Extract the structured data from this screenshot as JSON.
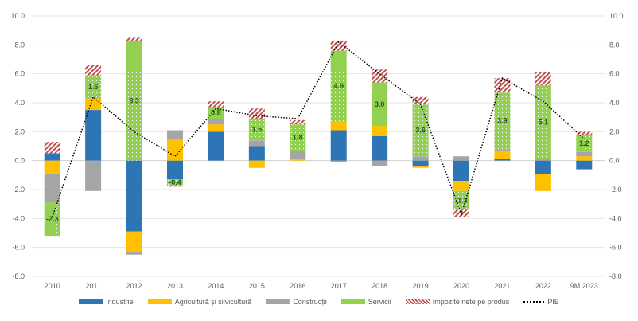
{
  "chart_data": {
    "type": "bar",
    "stacked": true,
    "title": "",
    "xlabel": "",
    "ylabel": "",
    "ylim": [
      -8.0,
      10.0
    ],
    "yticks": [
      "10.0",
      "8.0",
      "6.0",
      "4.0",
      "2.0",
      "0.0",
      "-2.0",
      "-4.0",
      "-6.0",
      "-8.0"
    ],
    "ytick_values": [
      10,
      8,
      6,
      4,
      2,
      0,
      -2,
      -4,
      -6,
      -8
    ],
    "secondary_yaxis": true,
    "grid": true,
    "legend_position": "bottom",
    "categories": [
      "2010",
      "2011",
      "2012",
      "2013",
      "2014",
      "2015",
      "2016",
      "2017",
      "2018",
      "2019",
      "2020",
      "2021",
      "2022",
      "9M 2023"
    ],
    "series": [
      {
        "name": "Industrie",
        "type": "bar",
        "color": "#2e75b6",
        "values": [
          0.5,
          3.5,
          -4.9,
          -1.3,
          2.0,
          1.0,
          0.0,
          2.1,
          1.7,
          -0.4,
          -1.4,
          0.1,
          -0.9,
          -0.6
        ]
      },
      {
        "name": "Agricultură și silvicultură",
        "type": "bar",
        "color": "#ffc000",
        "values": [
          -0.9,
          0.8,
          -1.4,
          1.5,
          0.5,
          -0.5,
          0.1,
          0.6,
          0.7,
          -0.1,
          -0.7,
          0.6,
          -1.2,
          0.3
        ]
      },
      {
        "name": "Construcții",
        "type": "bar",
        "color": "#a5a5a5",
        "values": [
          -2.0,
          -2.1,
          -0.2,
          0.6,
          0.4,
          0.4,
          0.6,
          -0.1,
          -0.4,
          0.3,
          0.3,
          0.1,
          0.1,
          0.3
        ]
      },
      {
        "name": "Servicii",
        "type": "bar",
        "color": "#92d050",
        "pattern": "dots",
        "values": [
          -2.3,
          1.6,
          8.3,
          -0.4,
          0.8,
          1.5,
          1.8,
          4.9,
          3.0,
          3.6,
          -1.3,
          3.9,
          5.1,
          1.2
        ],
        "labels": [
          "-2.3",
          "1.6",
          "8.3",
          "-0.4",
          "0.8",
          "1.5",
          "1.8",
          "4.9",
          "3.0",
          "3.6",
          "-1.3",
          "3.9",
          "5.1",
          "1.2"
        ]
      },
      {
        "name": "Impozite nete pe produs",
        "type": "bar",
        "color": "#c0504d",
        "pattern": "hatch",
        "values": [
          0.8,
          0.7,
          0.2,
          -0.1,
          0.4,
          0.7,
          0.3,
          0.7,
          0.9,
          0.5,
          -0.5,
          1.0,
          0.9,
          0.2
        ]
      },
      {
        "name": "PIB",
        "type": "line",
        "style": "dotted",
        "color": "#000000",
        "values": [
          -3.9,
          4.4,
          2.0,
          0.3,
          3.6,
          3.1,
          2.9,
          8.2,
          6.0,
          3.9,
          -3.7,
          5.7,
          4.1,
          1.5
        ]
      }
    ]
  }
}
